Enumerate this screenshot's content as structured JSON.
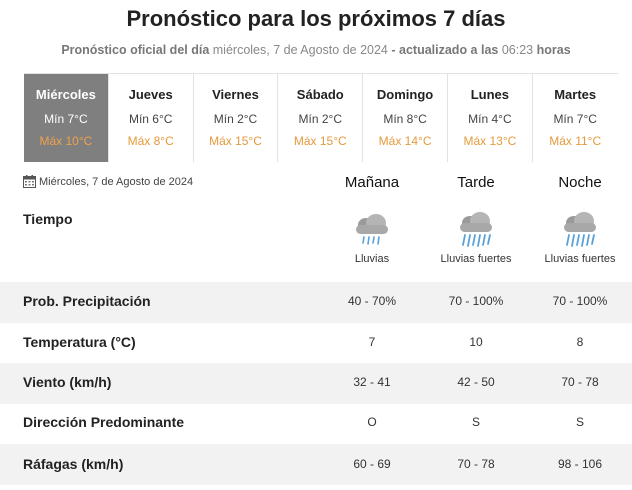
{
  "header": {
    "title": "Pronóstico para los próximos 7 días",
    "subtitle_prefix": "Pronóstico oficial del día",
    "subtitle_date": "miércoles, 7 de Agosto de 2024",
    "subtitle_updated": "- actualizado a las",
    "subtitle_time": "06:23",
    "subtitle_suffix": "horas"
  },
  "days": [
    {
      "name": "Miércoles",
      "min": "Mín 7°C",
      "max": "Máx 10°C",
      "active": true
    },
    {
      "name": "Jueves",
      "min": "Mín 6°C",
      "max": "Máx 8°C"
    },
    {
      "name": "Viernes",
      "min": "Mín 2°C",
      "max": "Máx 15°C"
    },
    {
      "name": "Sábado",
      "min": "Mín 2°C",
      "max": "Máx 15°C"
    },
    {
      "name": "Domingo",
      "min": "Mín 8°C",
      "max": "Máx 14°C"
    },
    {
      "name": "Lunes",
      "min": "Mín 4°C",
      "max": "Máx 13°C"
    },
    {
      "name": "Martes",
      "min": "Mín 7°C",
      "max": "Máx 11°C"
    }
  ],
  "detail": {
    "date": "Miércoles, 7 de Agosto de 2024",
    "calendar_icon": "calendar-icon",
    "periods": [
      "Mañana",
      "Tarde",
      "Noche"
    ],
    "weather_label": "Tiempo",
    "weather": [
      {
        "icon": "cloud-rain-icon",
        "label": "Lluvias"
      },
      {
        "icon": "cloud-heavy-rain-icon",
        "label": "Lluvias fuertes"
      },
      {
        "icon": "cloud-heavy-rain-icon",
        "label": "Lluvias fuertes"
      }
    ],
    "rows": [
      {
        "label": "Prob. Precipitación",
        "values": [
          "40 - 70%",
          "70 - 100%",
          "70 - 100%"
        ]
      },
      {
        "label": "Temperatura (°C)",
        "values": [
          "7",
          "10",
          "8"
        ]
      },
      {
        "label": "Viento (km/h)",
        "values": [
          "32 - 41",
          "42 - 50",
          "70 - 78"
        ]
      },
      {
        "label": "Dirección Predominante",
        "values": [
          "O",
          "S",
          "S"
        ]
      },
      {
        "label": "Ráfagas (km/h)",
        "values": [
          "60 - 69",
          "70 - 78",
          "98 - 106"
        ]
      }
    ]
  },
  "colors": {
    "active_day_bg": "#7f7f7f",
    "max_temp": "#e49a3c",
    "row_band": "#f2f2f2",
    "rain": "#5aa0d8"
  }
}
